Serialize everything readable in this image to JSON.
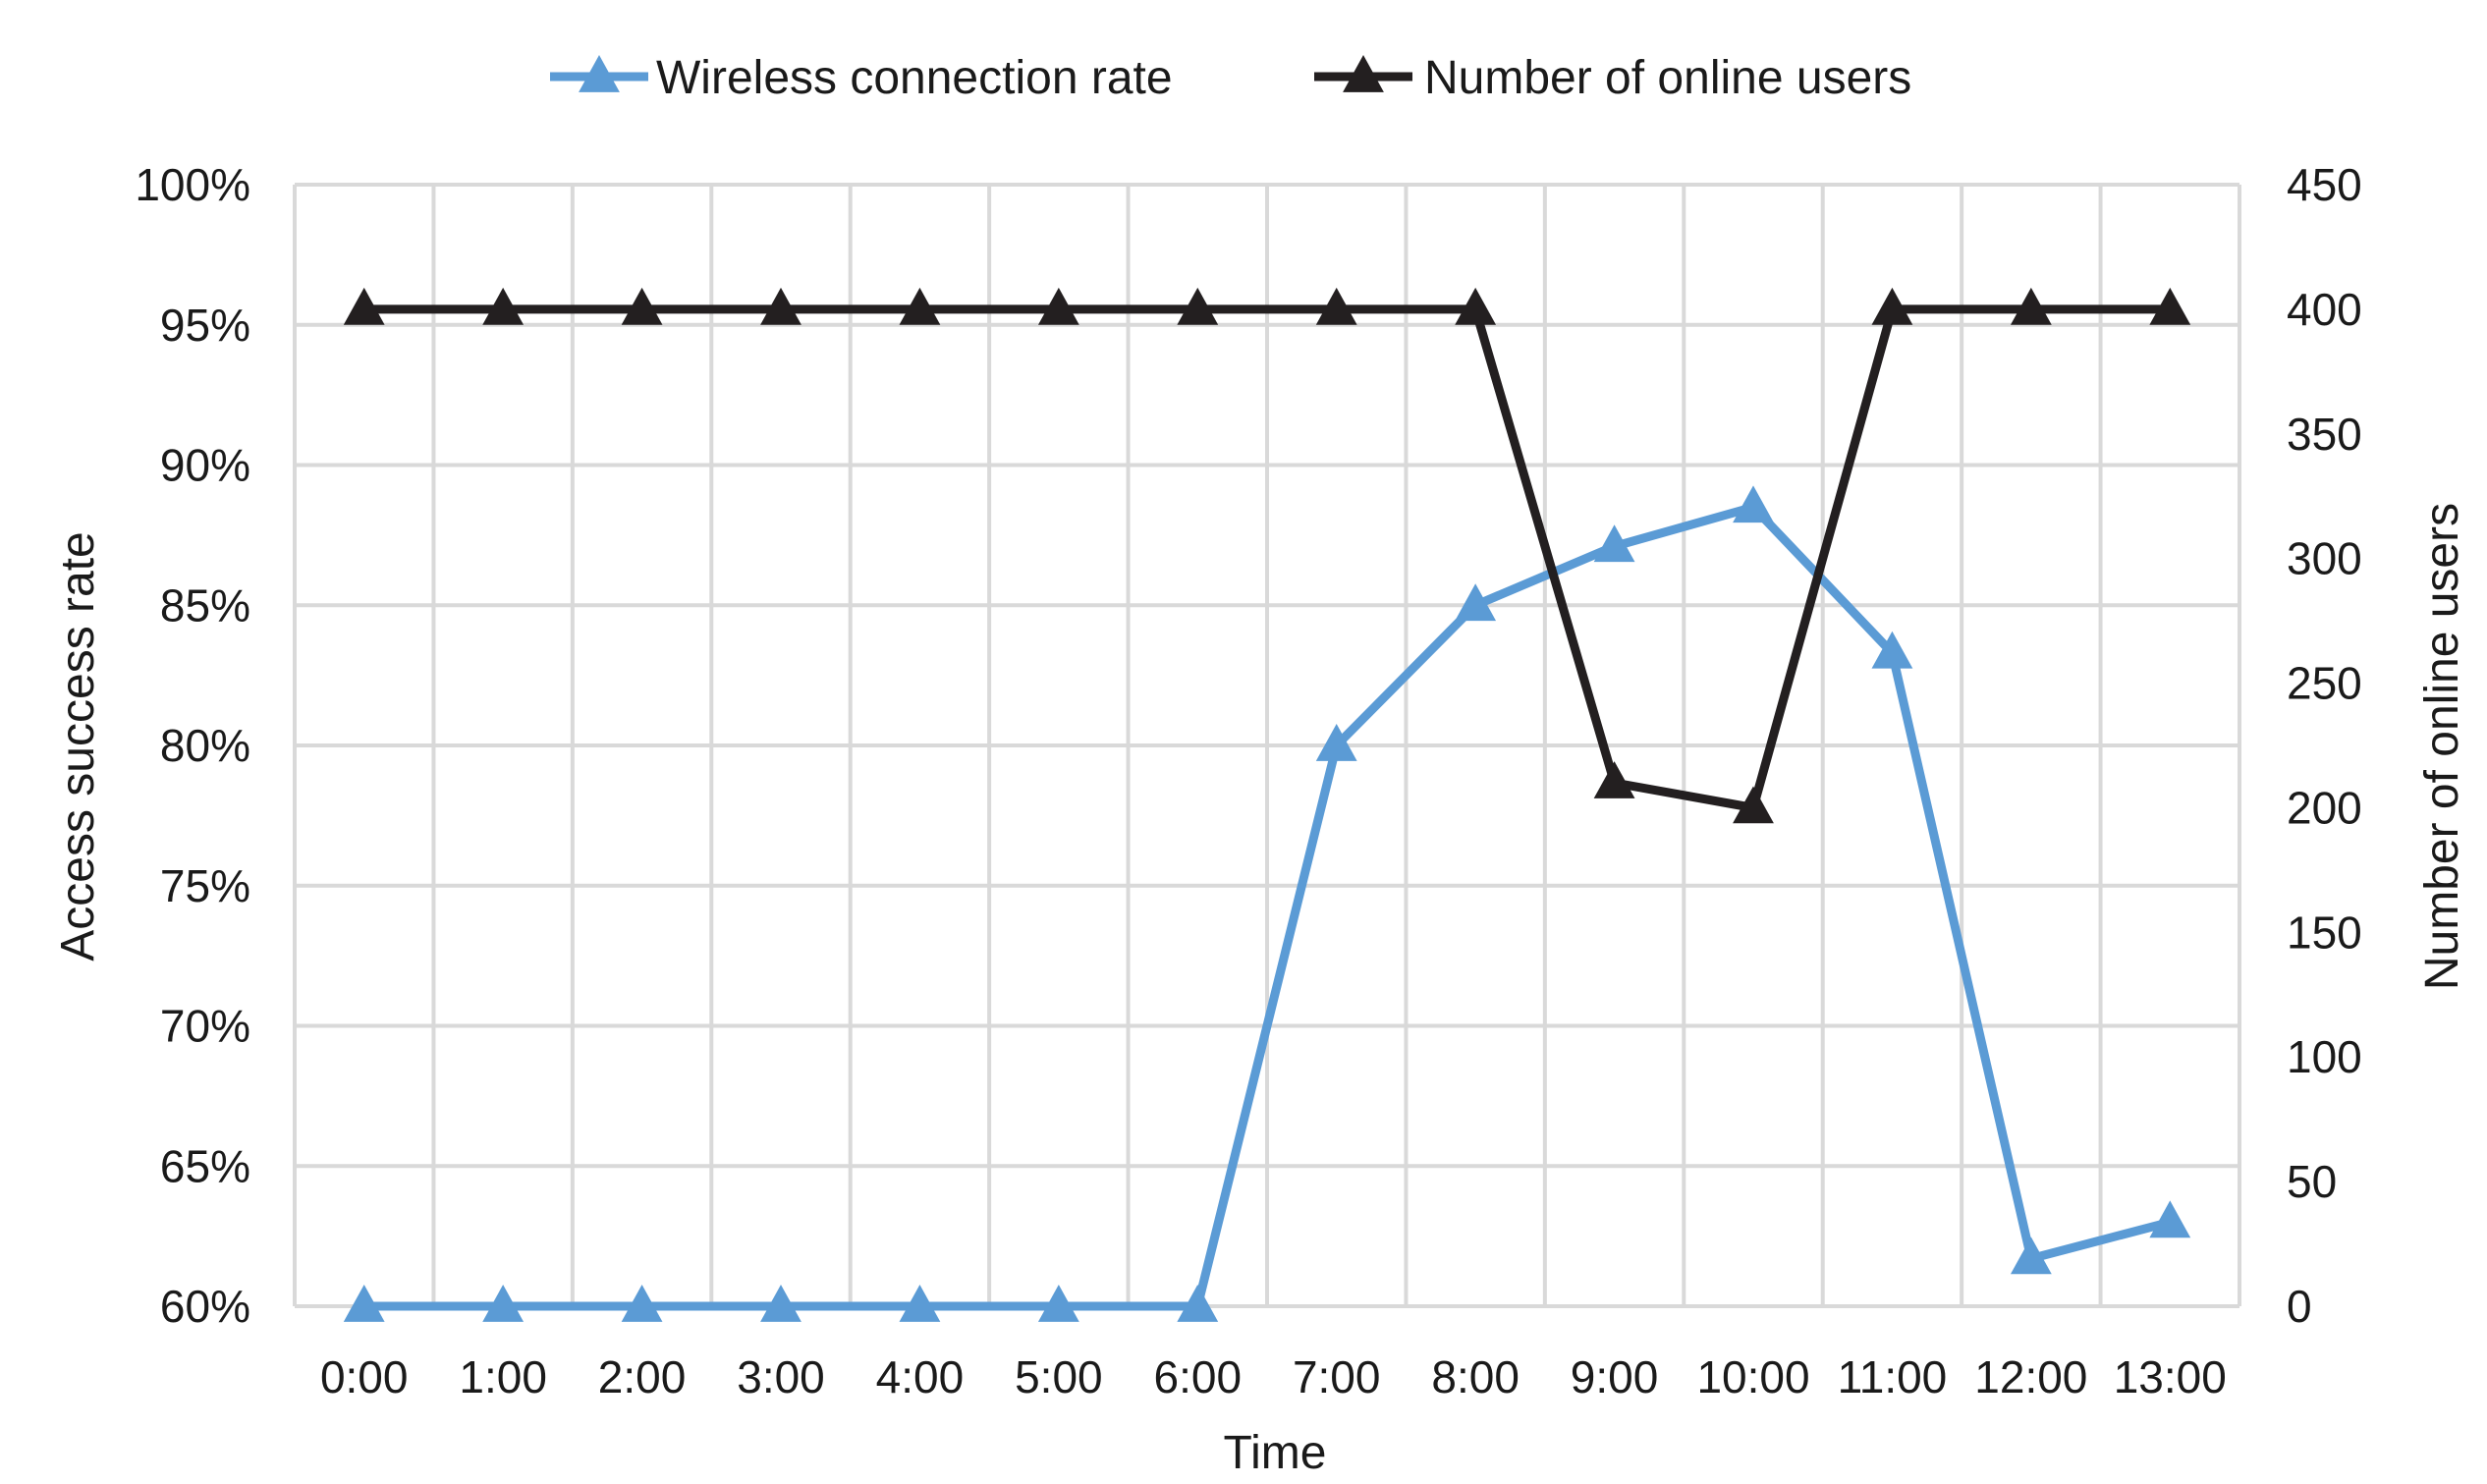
{
  "chart_data": {
    "type": "line",
    "title": "",
    "xlabel": "Time",
    "ylabel": "Access success rate",
    "y2label": "Number of online users",
    "categories": [
      "0:00",
      "1:00",
      "2:00",
      "3:00",
      "4:00",
      "5:00",
      "6:00",
      "7:00",
      "8:00",
      "9:00",
      "10:00",
      "11:00",
      "12:00",
      "13:00"
    ],
    "ylim": [
      0.6,
      1.0
    ],
    "yticks": [
      "60%",
      "65%",
      "70%",
      "75%",
      "80%",
      "85%",
      "90%",
      "95%",
      "100%"
    ],
    "y2lim": [
      0,
      450
    ],
    "y2ticks": [
      "0",
      "50",
      "100",
      "150",
      "200",
      "250",
      "300",
      "350",
      "400",
      "450"
    ],
    "grid": true,
    "legend_position": "top-center",
    "series": [
      {
        "name": "Wireless connection rate",
        "axis": "left",
        "color": "#5b9bd5",
        "marker": "triangle",
        "values": [
          0.6,
          0.6,
          0.6,
          0.6,
          0.6,
          0.6,
          0.6,
          0.8,
          0.85,
          0.871,
          0.885,
          0.833,
          0.617,
          0.63
        ]
      },
      {
        "name": "Number of online users",
        "axis": "right",
        "color": "#231f20",
        "marker": "triangle",
        "values": [
          400,
          400,
          400,
          400,
          400,
          400,
          400,
          400,
          400,
          210,
          200,
          400,
          400,
          400
        ]
      }
    ]
  }
}
